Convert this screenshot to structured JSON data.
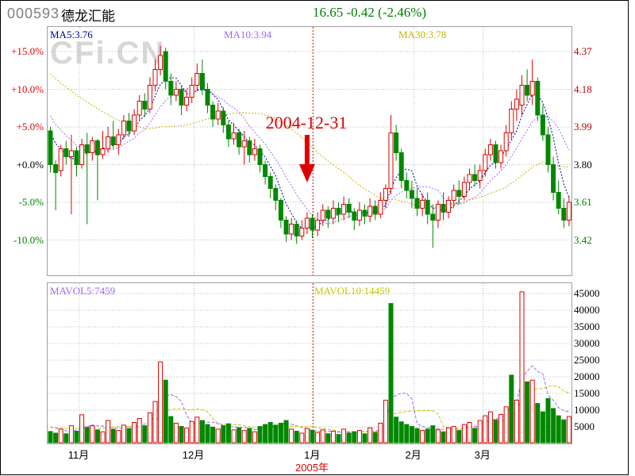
{
  "header": {
    "stock_code": "000593",
    "stock_name": "德龙汇能",
    "quote": "16.65 -0.42 (-2.46%)",
    "quote_color": "#008000"
  },
  "watermark": "CFi.CN",
  "legends": {
    "ma5": {
      "text": "MA5:3.76",
      "color": "#0000a0"
    },
    "ma10": {
      "text": "MA10:3.94",
      "color": "#a066ff"
    },
    "ma30": {
      "text": "MA30:3.78",
      "color": "#c8b400"
    },
    "mavol5": {
      "text": "MAVOL5:7459",
      "color": "#a066ff"
    },
    "mavol10": {
      "text": "MAVOL10:14459",
      "color": "#c8c800"
    }
  },
  "annotation": {
    "text": "2004-12-31",
    "color": "#dd0000",
    "date_index": 49
  },
  "axes": {
    "percent_ticks": [
      {
        "label": "+15.0%",
        "value": 15,
        "color": "#e00000"
      },
      {
        "label": "+10.0%",
        "value": 10,
        "color": "#e00000"
      },
      {
        "label": "+5.0%",
        "value": 5,
        "color": "#e00000"
      },
      {
        "label": "+0.0%",
        "value": 0,
        "color": "#000000"
      },
      {
        "label": "-5.0%",
        "value": -5,
        "color": "#008000"
      },
      {
        "label": "-10.0%",
        "value": -10,
        "color": "#008000"
      }
    ],
    "price_ticks": [
      {
        "label": "4.37",
        "value": 4.37,
        "color": "#c00000"
      },
      {
        "label": "4.18",
        "value": 4.18,
        "color": "#c00000"
      },
      {
        "label": "3.99",
        "value": 3.99,
        "color": "#c00000"
      },
      {
        "label": "3.80",
        "value": 3.8,
        "color": "#000000"
      },
      {
        "label": "3.61",
        "value": 3.61,
        "color": "#008000"
      },
      {
        "label": "3.42",
        "value": 3.42,
        "color": "#008000"
      }
    ],
    "volume_ticks": [
      {
        "label": "45000",
        "value": 45000
      },
      {
        "label": "40000",
        "value": 40000
      },
      {
        "label": "35000",
        "value": 35000
      },
      {
        "label": "30000",
        "value": 30000
      },
      {
        "label": "25000",
        "value": 25000
      },
      {
        "label": "20000",
        "value": 20000
      },
      {
        "label": "15000",
        "value": 15000
      },
      {
        "label": "10000",
        "value": 10000
      },
      {
        "label": "5000",
        "value": 5000
      }
    ],
    "months": [
      {
        "label": "11月",
        "index": 5.9
      },
      {
        "label": "12月",
        "index": 27.8
      },
      {
        "label": "1月",
        "index": 50.5,
        "year_line": true
      },
      {
        "label": "2月",
        "index": 69.8
      },
      {
        "label": "3月",
        "index": 83.0
      }
    ],
    "year_label": {
      "text": "2005年",
      "index": 50.5
    }
  },
  "chart_data": {
    "type": "candlestick+volume",
    "title": "000593 德龙汇能 daily K-line with volume",
    "base_price": 3.8,
    "pct_range": [
      -14.7,
      18.2
    ],
    "vol_range": [
      0,
      48000
    ],
    "colors": {
      "up": "#dd0000",
      "down": "#008800",
      "grid": "#bbbbbb",
      "year_line": "#dd0000"
    },
    "prior_closes": [
      4.55,
      4.52,
      4.5,
      4.48,
      4.45,
      4.43,
      4.41,
      4.4,
      4.39,
      4.38,
      4.37,
      4.36,
      4.35,
      4.34,
      4.33,
      4.31,
      4.29,
      4.27,
      4.25,
      4.23,
      4.21,
      4.19,
      4.16,
      4.13,
      4.1,
      4.07,
      4.04,
      4.01,
      3.99,
      3.97
    ],
    "prior_vols": [
      5200,
      4800,
      5600,
      5000,
      4400,
      5200,
      4600,
      5800,
      5400,
      5000
    ],
    "ma_periods": [
      5,
      10,
      30
    ],
    "mavol_periods": [
      5,
      10
    ],
    "vol_color_flip": [
      65,
      88
    ],
    "candles": [
      [
        3.97,
        3.99,
        3.76,
        3.8,
        3600
      ],
      [
        3.8,
        3.82,
        3.57,
        3.76,
        3100
      ],
      [
        3.77,
        3.9,
        3.74,
        3.88,
        4300
      ],
      [
        3.88,
        3.92,
        3.8,
        3.84,
        2900
      ],
      [
        3.84,
        3.95,
        3.55,
        3.87,
        5300
      ],
      [
        3.87,
        3.89,
        3.74,
        3.8,
        3700
      ],
      [
        3.8,
        3.93,
        3.78,
        3.9,
        8600
      ],
      [
        3.9,
        3.96,
        3.5,
        3.86,
        4800
      ],
      [
        3.86,
        3.94,
        3.82,
        3.92,
        5300
      ],
      [
        3.92,
        3.93,
        3.62,
        3.85,
        4100
      ],
      [
        3.85,
        3.97,
        3.83,
        3.88,
        3500
      ],
      [
        3.88,
        3.99,
        3.86,
        3.94,
        6900
      ],
      [
        3.94,
        4.02,
        3.88,
        3.9,
        4300
      ],
      [
        3.9,
        3.98,
        3.85,
        3.95,
        3900
      ],
      [
        3.95,
        4.05,
        3.93,
        4.02,
        5500
      ],
      [
        4.02,
        4.06,
        3.94,
        3.97,
        4500
      ],
      [
        3.97,
        4.08,
        3.95,
        4.05,
        6300
      ],
      [
        4.05,
        4.15,
        4.02,
        4.12,
        7500
      ],
      [
        4.12,
        4.16,
        4.04,
        4.08,
        5300
      ],
      [
        4.08,
        4.24,
        4.06,
        4.2,
        9200
      ],
      [
        4.2,
        4.33,
        4.17,
        4.28,
        12600
      ],
      [
        4.28,
        4.4,
        4.25,
        4.35,
        24500
      ],
      [
        4.37,
        4.39,
        4.18,
        4.22,
        19000
      ],
      [
        4.22,
        4.26,
        4.1,
        4.15,
        8100
      ],
      [
        4.15,
        4.22,
        4.12,
        4.18,
        6100
      ],
      [
        4.18,
        4.2,
        4.05,
        4.1,
        5100
      ],
      [
        4.1,
        4.18,
        4.07,
        4.14,
        4600
      ],
      [
        4.14,
        4.24,
        4.11,
        4.2,
        6600
      ],
      [
        4.2,
        4.31,
        4.17,
        4.26,
        7900
      ],
      [
        4.26,
        4.33,
        4.15,
        4.18,
        6900
      ],
      [
        4.18,
        4.21,
        4.06,
        4.1,
        5700
      ],
      [
        4.1,
        4.12,
        3.99,
        4.03,
        4900
      ],
      [
        4.03,
        4.11,
        4.0,
        4.07,
        4300
      ],
      [
        4.07,
        4.09,
        3.96,
        4.0,
        5300
      ],
      [
        4.0,
        4.02,
        3.89,
        3.93,
        5900
      ],
      [
        3.93,
        4.01,
        3.9,
        3.96,
        4100
      ],
      [
        3.96,
        3.98,
        3.85,
        3.89,
        4700
      ],
      [
        3.89,
        3.97,
        3.8,
        3.92,
        3900
      ],
      [
        3.92,
        3.94,
        3.81,
        3.85,
        4500
      ],
      [
        3.85,
        3.93,
        3.82,
        3.88,
        3500
      ],
      [
        3.88,
        3.9,
        3.76,
        3.8,
        5100
      ],
      [
        3.8,
        3.82,
        3.7,
        3.74,
        5700
      ],
      [
        3.74,
        3.76,
        3.63,
        3.68,
        6300
      ],
      [
        3.68,
        3.7,
        3.57,
        3.62,
        5500
      ],
      [
        3.62,
        3.63,
        3.48,
        3.52,
        6100
      ],
      [
        3.52,
        3.54,
        3.41,
        3.45,
        6900
      ],
      [
        3.45,
        3.53,
        3.42,
        3.5,
        4300
      ],
      [
        3.5,
        3.52,
        3.4,
        3.44,
        3700
      ],
      [
        3.44,
        3.52,
        3.42,
        3.48,
        3100
      ],
      [
        3.48,
        3.56,
        3.45,
        3.53,
        4500
      ],
      [
        3.53,
        3.55,
        3.43,
        3.47,
        3900
      ],
      [
        3.47,
        3.56,
        3.44,
        3.52,
        3300
      ],
      [
        3.52,
        3.6,
        3.49,
        3.57,
        4100
      ],
      [
        3.57,
        3.59,
        3.48,
        3.53,
        2900
      ],
      [
        3.53,
        3.62,
        3.5,
        3.58,
        3700
      ],
      [
        3.58,
        3.61,
        3.51,
        3.55,
        2700
      ],
      [
        3.55,
        3.64,
        3.52,
        3.6,
        4300
      ],
      [
        3.6,
        3.63,
        3.53,
        3.56,
        3100
      ],
      [
        3.56,
        3.58,
        3.47,
        3.52,
        3500
      ],
      [
        3.52,
        3.61,
        3.49,
        3.57,
        3900
      ],
      [
        3.57,
        3.6,
        3.5,
        3.54,
        2900
      ],
      [
        3.54,
        3.63,
        3.51,
        3.59,
        4700
      ],
      [
        3.59,
        3.62,
        3.52,
        3.55,
        3300
      ],
      [
        3.55,
        3.66,
        3.53,
        3.62,
        6100
      ],
      [
        3.62,
        3.7,
        3.58,
        3.68,
        13000
      ],
      [
        3.68,
        4.05,
        3.65,
        3.96,
        42000
      ],
      [
        3.96,
        4.0,
        3.82,
        3.86,
        7900
      ],
      [
        3.86,
        3.88,
        3.68,
        3.72,
        6500
      ],
      [
        3.72,
        3.76,
        3.63,
        3.67,
        5700
      ],
      [
        3.67,
        3.72,
        3.58,
        3.63,
        5100
      ],
      [
        3.63,
        3.68,
        3.54,
        3.58,
        4500
      ],
      [
        3.58,
        3.65,
        3.54,
        3.62,
        3900
      ],
      [
        3.62,
        3.66,
        3.5,
        3.55,
        4300
      ],
      [
        3.55,
        3.6,
        3.38,
        3.52,
        5300
      ],
      [
        3.52,
        3.62,
        3.48,
        3.6,
        4100
      ],
      [
        3.6,
        3.66,
        3.52,
        3.56,
        3500
      ],
      [
        3.56,
        3.64,
        3.53,
        3.62,
        4700
      ],
      [
        3.62,
        3.7,
        3.58,
        3.67,
        5100
      ],
      [
        3.67,
        3.72,
        3.6,
        3.64,
        3900
      ],
      [
        3.64,
        3.74,
        3.62,
        3.71,
        5700
      ],
      [
        3.71,
        3.78,
        3.67,
        3.75,
        6300
      ],
      [
        3.75,
        3.8,
        3.69,
        3.72,
        4500
      ],
      [
        3.72,
        3.8,
        3.68,
        3.77,
        6900
      ],
      [
        3.77,
        3.88,
        3.74,
        3.85,
        8300
      ],
      [
        3.85,
        3.93,
        3.82,
        3.9,
        9500
      ],
      [
        3.9,
        3.92,
        3.78,
        3.81,
        7100
      ],
      [
        3.81,
        3.9,
        3.78,
        3.87,
        8700
      ],
      [
        3.87,
        4.0,
        3.84,
        3.96,
        11000
      ],
      [
        3.96,
        4.12,
        3.93,
        4.08,
        20500
      ],
      [
        4.08,
        4.18,
        4.02,
        4.13,
        13000
      ],
      [
        4.1,
        4.25,
        4.05,
        4.2,
        45500
      ],
      [
        4.2,
        4.28,
        4.12,
        4.15,
        18500
      ],
      [
        4.15,
        4.33,
        4.1,
        4.22,
        19000
      ],
      [
        4.22,
        4.24,
        4.02,
        4.05,
        12000
      ],
      [
        4.05,
        4.1,
        3.92,
        3.95,
        9500
      ],
      [
        3.95,
        3.99,
        3.76,
        3.8,
        13500
      ],
      [
        3.8,
        3.84,
        3.62,
        3.66,
        10500
      ],
      [
        3.66,
        3.72,
        3.55,
        3.58,
        8300
      ],
      [
        3.58,
        3.63,
        3.48,
        3.52,
        7100
      ],
      [
        3.52,
        3.64,
        3.49,
        3.61,
        8100
      ]
    ]
  }
}
